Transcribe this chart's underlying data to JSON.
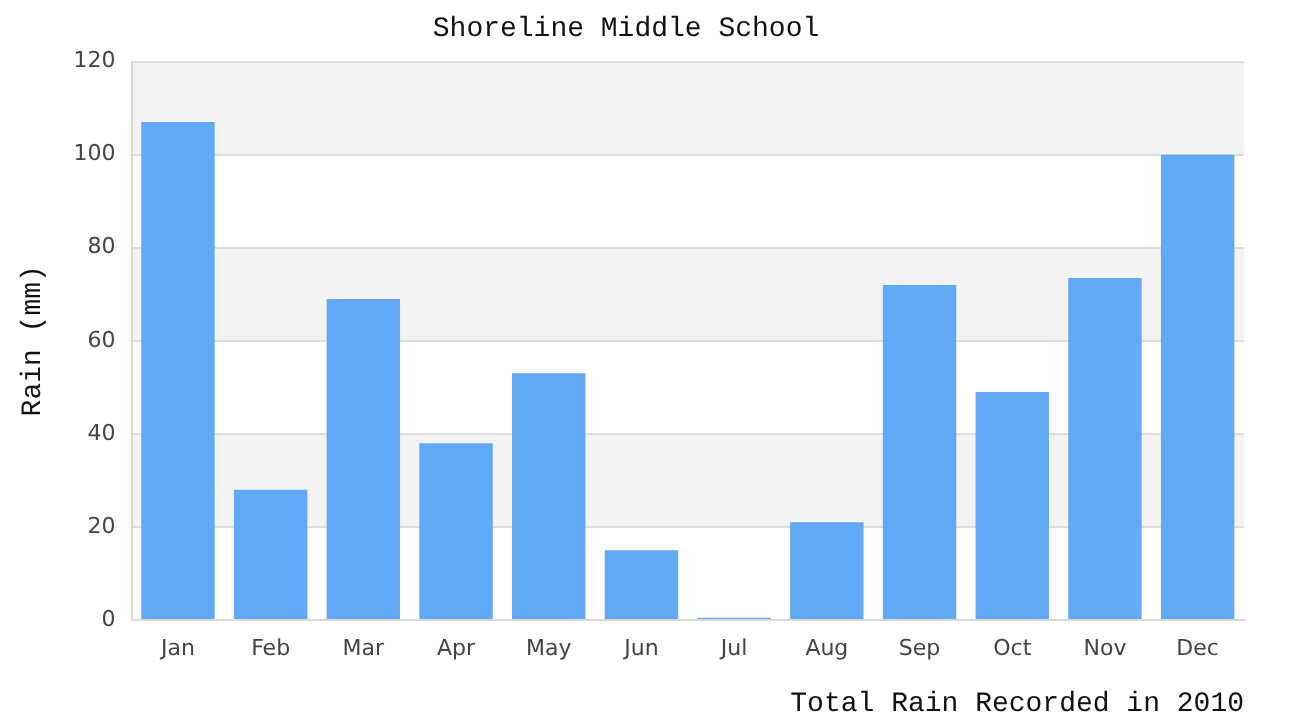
{
  "chart_data": {
    "type": "bar",
    "title": "Shoreline Middle School",
    "xlabel": "Total Rain Recorded in 2010",
    "ylabel": "Rain (mm)",
    "categories": [
      "Jan",
      "Feb",
      "Mar",
      "Apr",
      "May",
      "Jun",
      "Jul",
      "Aug",
      "Sep",
      "Oct",
      "Nov",
      "Dec"
    ],
    "values": [
      107,
      28,
      69,
      38,
      53,
      15,
      0.5,
      21,
      72,
      49,
      73.5,
      100
    ],
    "color": "#61a8f5",
    "ylim": [
      0,
      120
    ],
    "yticks": [
      0,
      20,
      40,
      60,
      80,
      100,
      120
    ],
    "grid": "y"
  }
}
